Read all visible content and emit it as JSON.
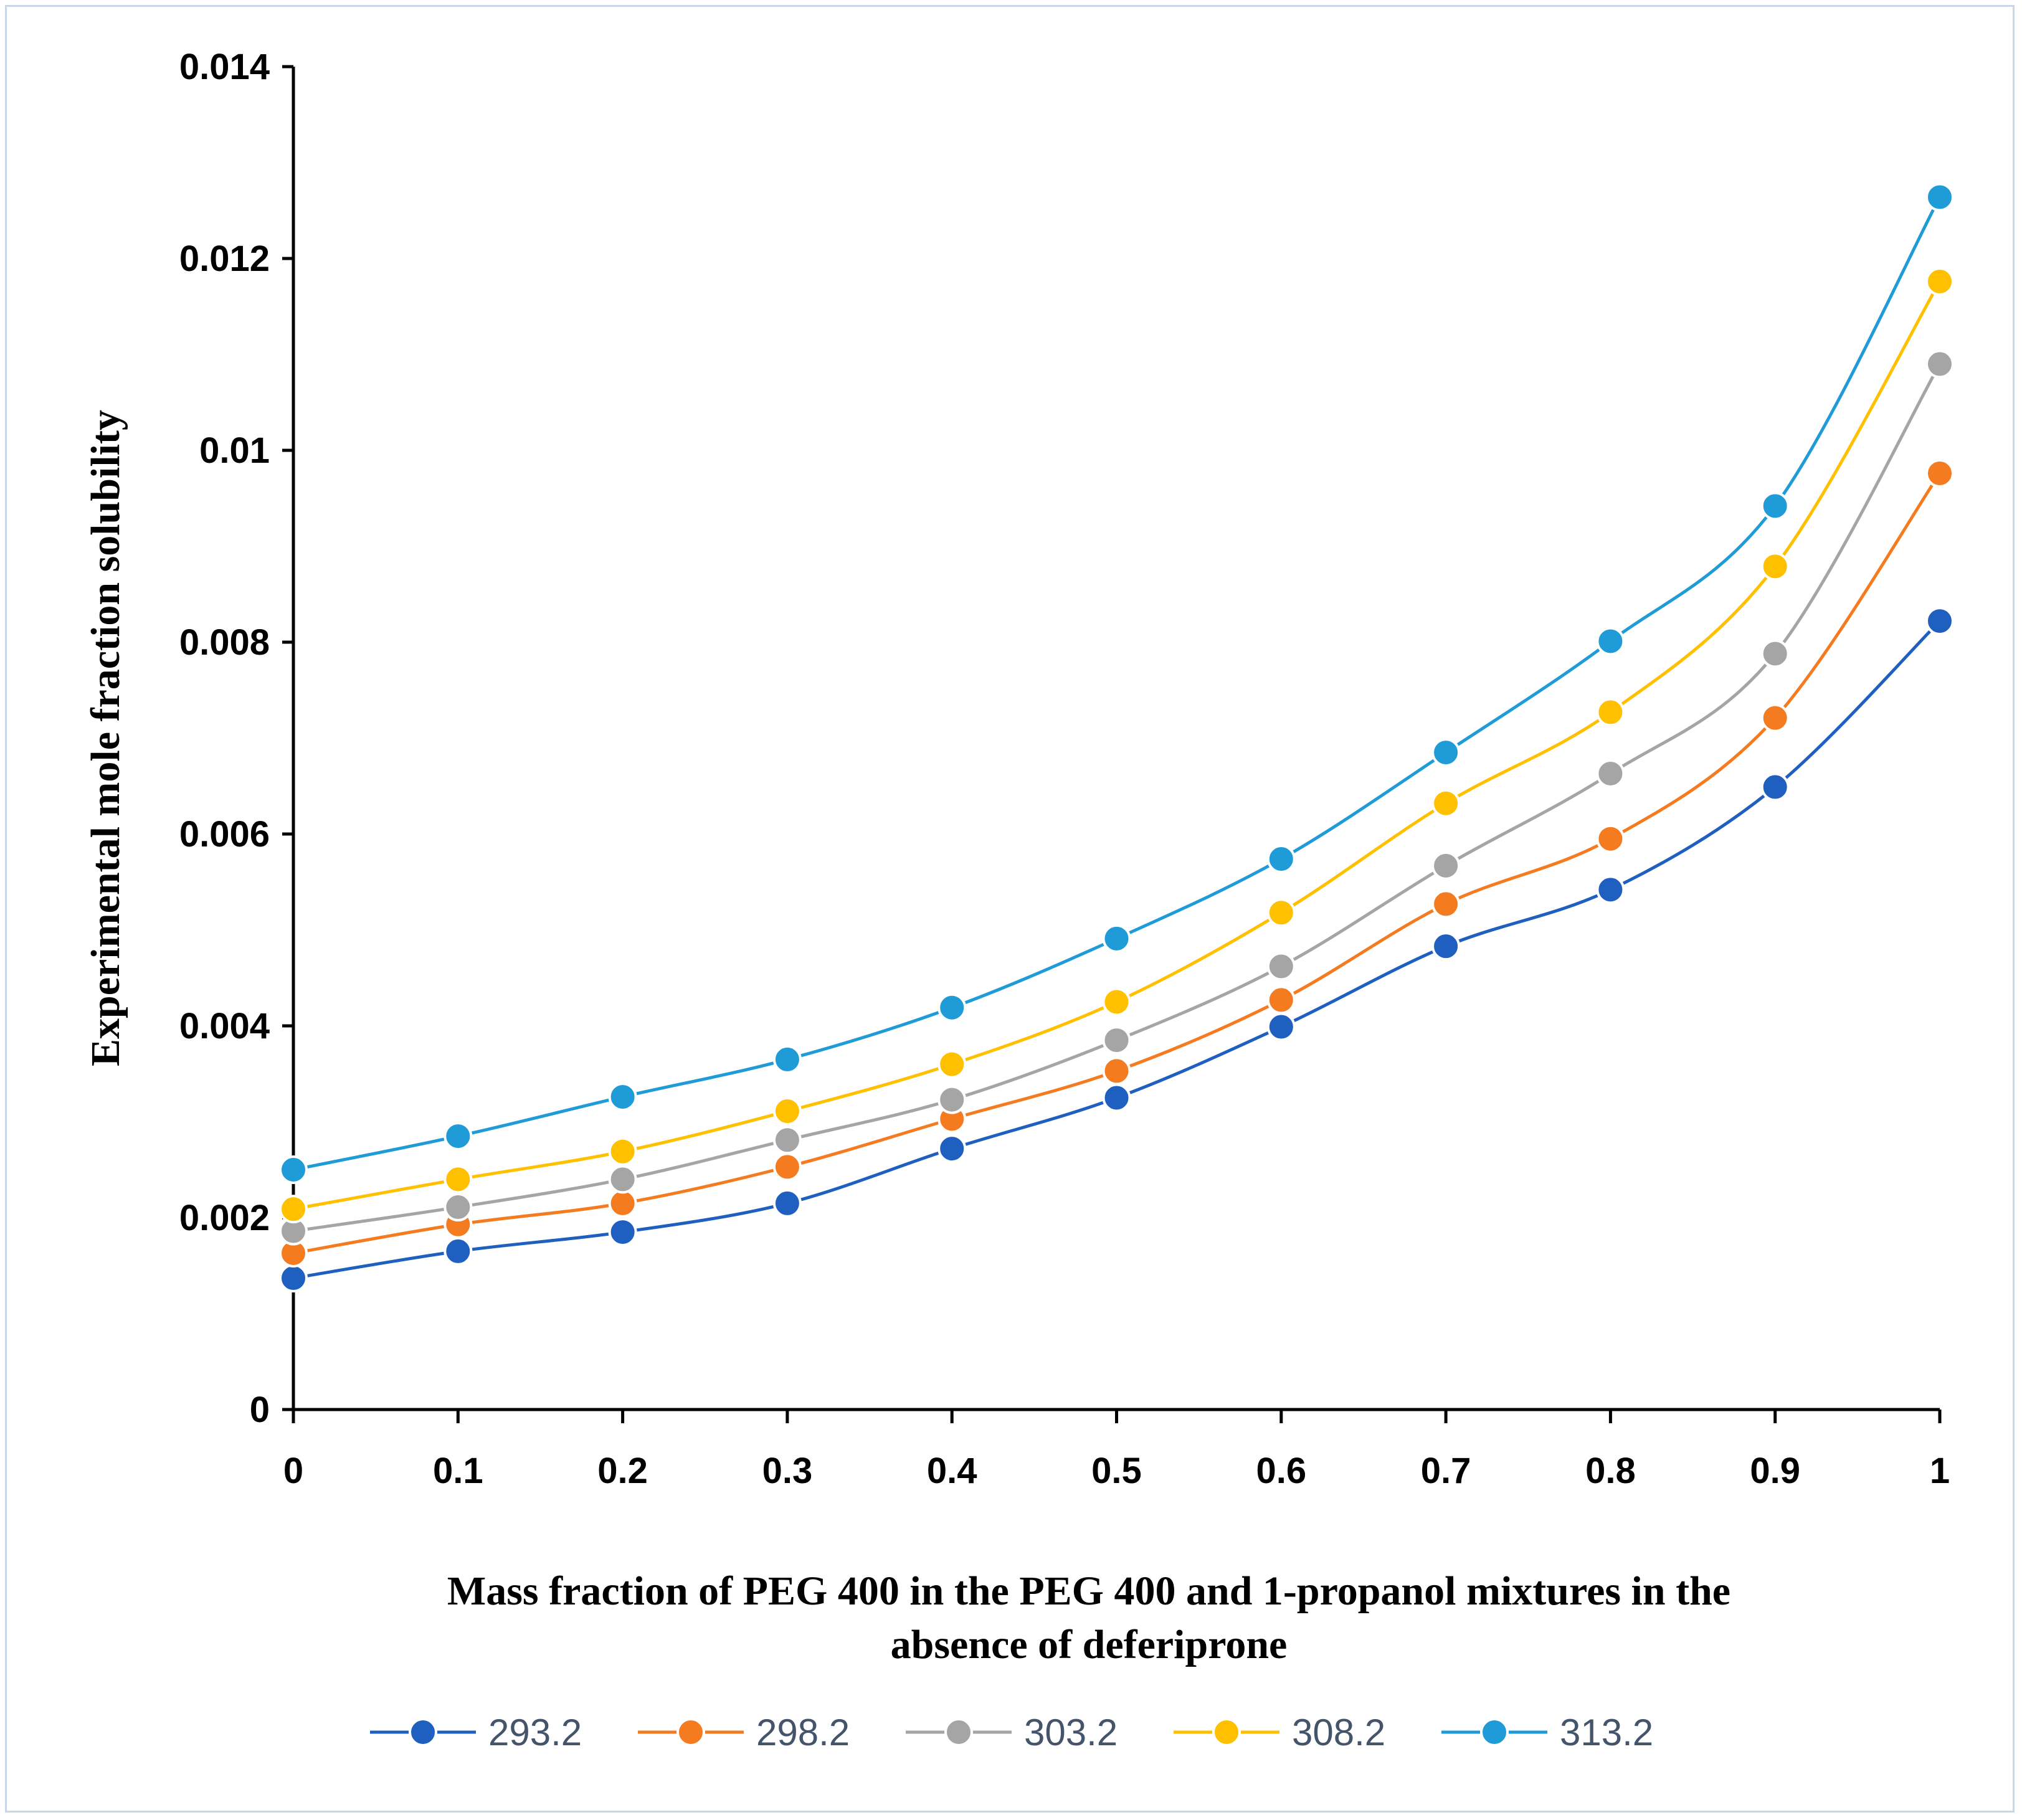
{
  "chart_data": {
    "type": "line",
    "title": "",
    "xlabel_lines": [
      "Mass fraction of PEG 400 in the PEG 400 and 1-propanol mixtures in the",
      "absence of deferiprone"
    ],
    "ylabel": "Experimental mole fraction solubility",
    "x": [
      0,
      0.1,
      0.2,
      0.3,
      0.4,
      0.5,
      0.6,
      0.7,
      0.8,
      0.9,
      1
    ],
    "x_tick_labels": [
      "0",
      "0.1",
      "0.2",
      "0.3",
      "0.4",
      "0.5",
      "0.6",
      "0.7",
      "0.8",
      "0.9",
      "1"
    ],
    "y_ticks": [
      0,
      0.002,
      0.004,
      0.006,
      0.008,
      0.01,
      0.012,
      0.014
    ],
    "y_tick_labels": [
      "0",
      "0.002",
      "0.004",
      "0.006",
      "0.008",
      "0.01",
      "0.012",
      "0.014"
    ],
    "xlim": [
      0,
      1
    ],
    "ylim": [
      0,
      0.014
    ],
    "grid": false,
    "legend_position": "bottom",
    "series": [
      {
        "name": "293.2",
        "color": "#1f5fbf",
        "values": [
          0.00137,
          0.00165,
          0.00185,
          0.00215,
          0.00272,
          0.00325,
          0.00399,
          0.00483,
          0.00542,
          0.00649,
          0.00822
        ]
      },
      {
        "name": "298.2",
        "color": "#f47b20",
        "values": [
          0.00163,
          0.00193,
          0.00215,
          0.00253,
          0.00303,
          0.00353,
          0.00427,
          0.00527,
          0.00595,
          0.00721,
          0.00976
        ]
      },
      {
        "name": "303.2",
        "color": "#a5a5a5",
        "values": [
          0.00186,
          0.00211,
          0.0024,
          0.00281,
          0.00323,
          0.00385,
          0.00462,
          0.00567,
          0.00663,
          0.00788,
          0.0109
        ]
      },
      {
        "name": "308.2",
        "color": "#ffc000",
        "values": [
          0.00209,
          0.0024,
          0.00269,
          0.00311,
          0.0036,
          0.00425,
          0.00518,
          0.00632,
          0.00727,
          0.00879,
          0.01176
        ]
      },
      {
        "name": "313.2",
        "color": "#1f9bd7",
        "values": [
          0.0025,
          0.00285,
          0.00326,
          0.00365,
          0.00419,
          0.00491,
          0.00574,
          0.00685,
          0.00801,
          0.00942,
          0.01264
        ]
      }
    ]
  }
}
